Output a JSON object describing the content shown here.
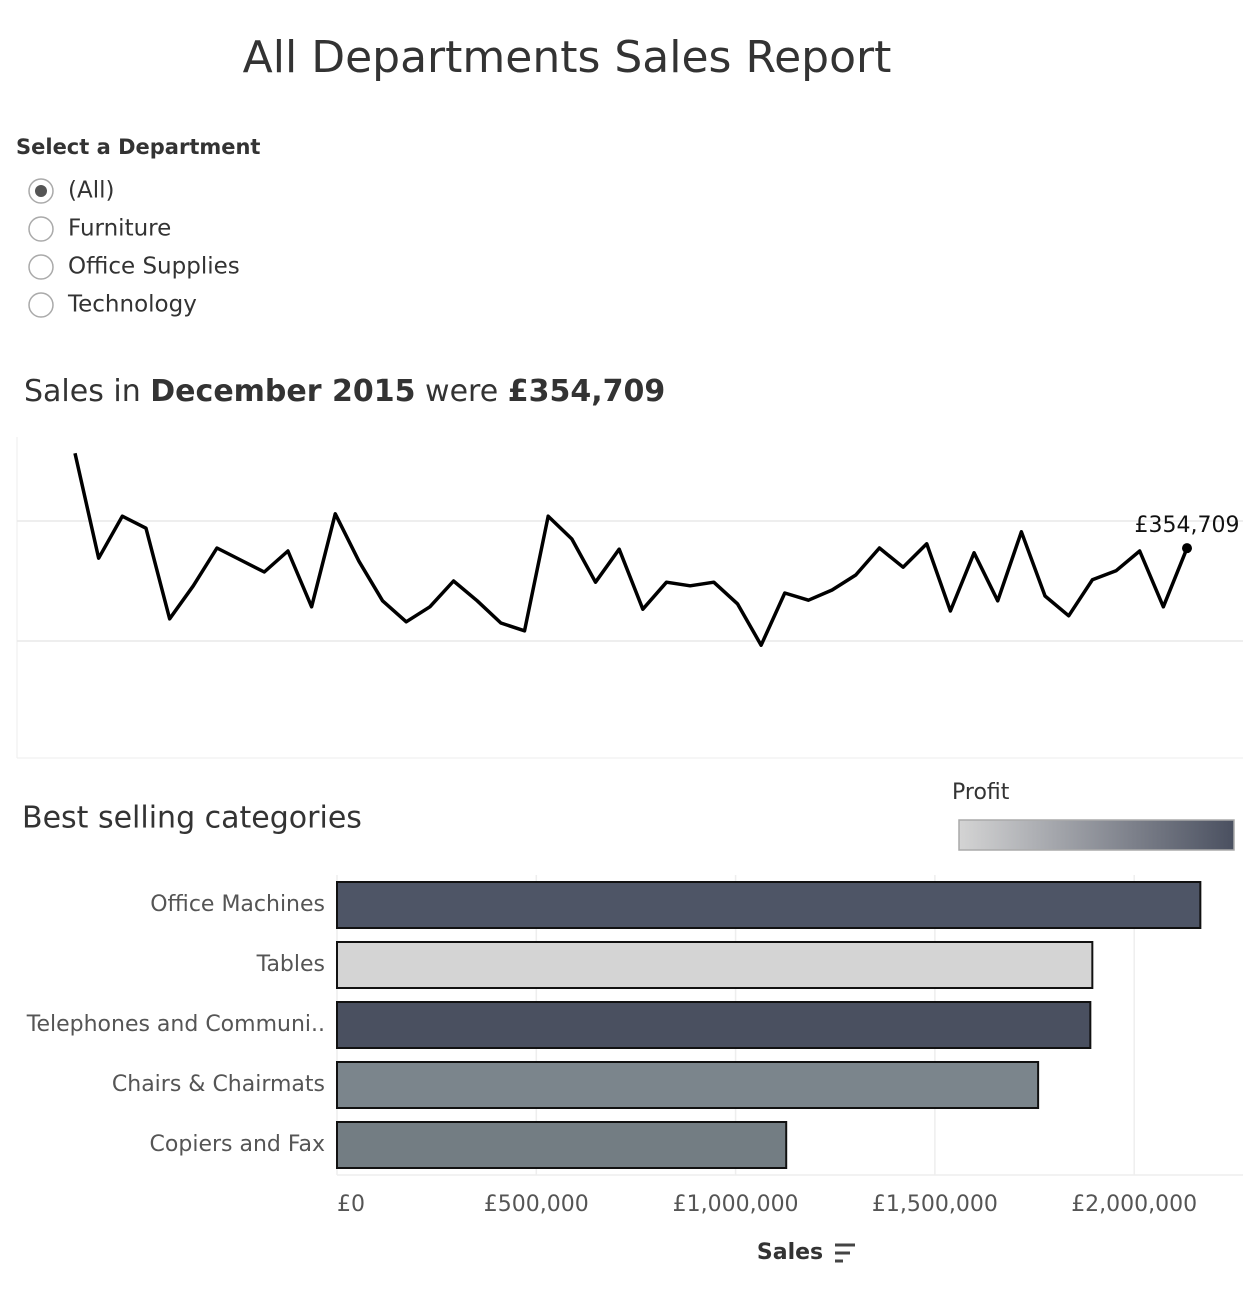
{
  "title": "All Departments Sales Report",
  "filter": {
    "label": "Select a Department",
    "options": [
      "(All)",
      "Furniture",
      "Office Supplies",
      "Technology"
    ],
    "selected": 0
  },
  "chart_data": [
    {
      "type": "line",
      "title_parts": [
        {
          "text": "Sales in",
          "bold": false
        },
        {
          "text": "December 2015",
          "bold": true
        },
        {
          "text": "were",
          "bold": false
        },
        {
          "text": "£354,709",
          "bold": true
        }
      ],
      "values": [
        513000,
        338000,
        408000,
        388000,
        237000,
        292000,
        355000,
        335000,
        315000,
        350000,
        257000,
        412000,
        333000,
        267000,
        232000,
        257000,
        300000,
        267000,
        230000,
        217000,
        408000,
        370000,
        298000,
        353000,
        253000,
        298000,
        292000,
        298000,
        262000,
        193000,
        280000,
        268000,
        285000,
        310000,
        355000,
        323000,
        362000,
        250000,
        347000,
        267000,
        382000,
        275000,
        242000,
        302000,
        317000,
        350000,
        257000,
        354709
      ],
      "value_labels": [
        null,
        null,
        null,
        null,
        null,
        null,
        null,
        null,
        null,
        null,
        null,
        null,
        null,
        null,
        null,
        null,
        null,
        null,
        null,
        null,
        null,
        null,
        null,
        null,
        null,
        null,
        null,
        null,
        null,
        null,
        null,
        null,
        null,
        null,
        null,
        null,
        null,
        null,
        null,
        null,
        null,
        null,
        null,
        null,
        null,
        null,
        null,
        "£354,709"
      ],
      "color": "#000000",
      "ylim": [
        0,
        540000
      ],
      "yticks": [
        200000,
        400000
      ],
      "grid": true
    },
    {
      "type": "bar",
      "orientation": "horizontal",
      "title": "Best selling categories",
      "categories": [
        "Office Machines",
        "Tables",
        "Telephones and Communi..",
        "Chairs & Chairmats",
        "Copiers and Fax"
      ],
      "values": [
        2166000,
        1895000,
        1890000,
        1759000,
        1127000
      ],
      "colors": [
        "#4e5566",
        "#d4d4d4",
        "#4a5060",
        "#7b858c",
        "#737d83"
      ],
      "xlim": [
        0,
        2273000
      ],
      "xticks": [
        {
          "value": 0,
          "label": "£0"
        },
        {
          "value": 500000,
          "label": "£500,000"
        },
        {
          "value": 1000000,
          "label": "£1,000,000"
        },
        {
          "value": 1500000,
          "label": "£1,500,000"
        },
        {
          "value": 2000000,
          "label": "£2,000,000"
        }
      ],
      "xlabel": "Sales",
      "grid": true,
      "legend": {
        "title": "Profit",
        "colors": [
          "#d4d4d4",
          "#4a5060"
        ]
      }
    }
  ]
}
